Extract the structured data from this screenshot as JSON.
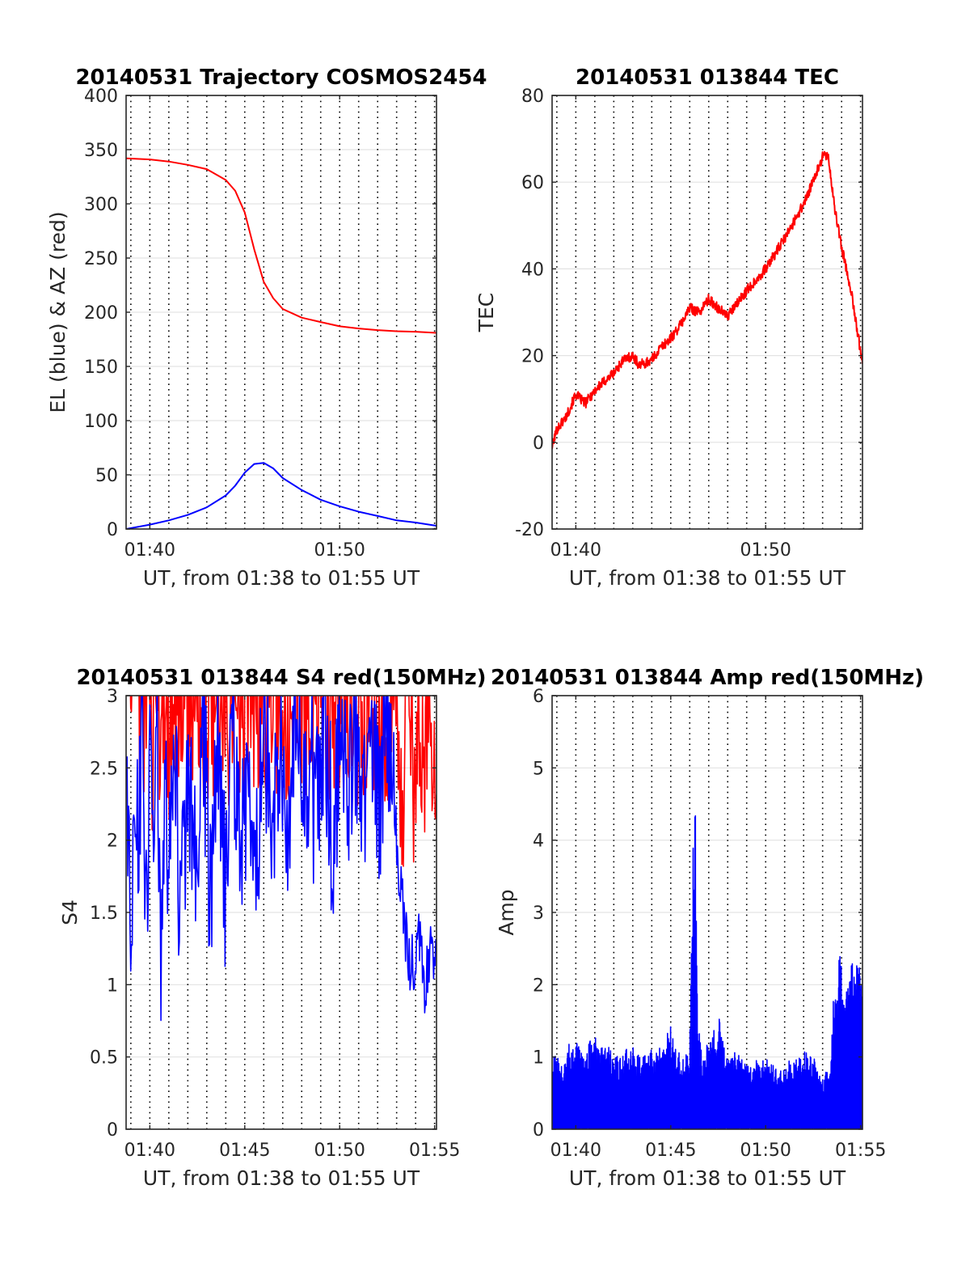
{
  "colors": {
    "red": "#ff0000",
    "blue": "#0000ff",
    "hgrid": "#e3e3e3",
    "vgrid": "#000000",
    "axis": "#262626"
  },
  "chart_data": [
    {
      "type": "line",
      "title": "20140531 Trajectory COSMOS2454",
      "xlabel": "UT, from 01:38 to 01:55 UT",
      "ylabel": "EL (blue) & AZ (red)",
      "x_unit": "minutes after 01:38 UT",
      "xlim": [
        0.75,
        17.1
      ],
      "ylim": [
        0,
        400
      ],
      "yticks": [
        0,
        50,
        100,
        150,
        200,
        250,
        300,
        350,
        400
      ],
      "yticklabels": [
        "0",
        "50",
        "100",
        "150",
        "200",
        "250",
        "300",
        "350",
        "400"
      ],
      "xticks": [
        2,
        12
      ],
      "xticklabels": [
        "01:40",
        "01:50"
      ],
      "vgrid": [
        1,
        2,
        3,
        4,
        5,
        6,
        7,
        8,
        9,
        10,
        11,
        12,
        13,
        14,
        15,
        16,
        17
      ],
      "series": [
        {
          "color": "#ff0000",
          "x": [
            0.75,
            2,
            3,
            4,
            5,
            6,
            6.5,
            7,
            7.5,
            8,
            8.5,
            9,
            10,
            11,
            12,
            13,
            14,
            15,
            16,
            17.1
          ],
          "y": [
            342,
            341,
            339,
            336,
            332,
            322,
            312,
            292,
            258,
            228,
            213,
            203,
            195,
            191,
            187,
            185,
            183.5,
            182.5,
            182,
            181
          ]
        },
        {
          "color": "#0000ff",
          "x": [
            0.75,
            2,
            3,
            4,
            5,
            6,
            6.5,
            7,
            7.5,
            8,
            8.5,
            9,
            10,
            11,
            12,
            13,
            14,
            15,
            16,
            17.1
          ],
          "y": [
            0,
            4,
            8,
            13,
            20,
            31,
            40,
            52,
            60,
            61,
            56,
            47,
            36,
            27,
            21,
            16,
            12,
            8,
            6,
            3
          ]
        }
      ]
    },
    {
      "type": "line",
      "title": "20140531 013844 TEC",
      "xlabel": "UT, from 01:38 to 01:55 UT",
      "ylabel": "TEC",
      "x_unit": "minutes after 01:38 UT",
      "xlim": [
        0.75,
        17.1
      ],
      "ylim": [
        -20,
        80
      ],
      "yticks": [
        -20,
        0,
        20,
        40,
        60,
        80
      ],
      "yticklabels": [
        "-20",
        "0",
        "20",
        "40",
        "60",
        "80"
      ],
      "xticks": [
        2,
        12
      ],
      "xticklabels": [
        "01:40",
        "01:50"
      ],
      "vgrid": [
        1,
        2,
        3,
        4,
        5,
        6,
        7,
        8,
        9,
        10,
        11,
        12,
        13,
        14,
        15,
        16,
        17
      ],
      "series": [
        {
          "color": "#ff0000",
          "x": [
            0.75,
            1.0,
            1.5,
            2.0,
            2.5,
            3.0,
            3.5,
            4.0,
            4.5,
            5.0,
            5.3,
            5.5,
            6.0,
            6.5,
            7.0,
            7.5,
            8.0,
            8.5,
            9.0,
            9.5,
            10.0,
            11.0,
            12.0,
            13.0,
            14.0,
            14.5,
            15.0,
            15.3,
            15.6,
            16.0,
            16.5,
            17.1
          ],
          "y": [
            -1,
            3,
            6,
            11,
            9,
            12,
            14,
            16,
            19,
            20,
            18,
            18,
            19,
            22,
            24,
            27,
            31,
            30,
            33,
            31,
            29,
            35,
            40,
            47,
            55,
            60,
            66,
            66,
            55,
            45,
            35,
            18
          ]
        }
      ]
    },
    {
      "type": "line",
      "title": "20140531 013844 S4 red(150MHz)",
      "xlabel": "UT, from 01:38 to 01:55 UT",
      "ylabel": "S4",
      "x_unit": "minutes after 01:38 UT",
      "xlim": [
        0.75,
        17.1
      ],
      "ylim": [
        0,
        3
      ],
      "yticks": [
        0,
        0.5,
        1,
        1.5,
        2,
        2.5,
        3
      ],
      "yticklabels": [
        "0",
        "0.5",
        "1",
        "1.5",
        "2",
        "2.5",
        "3"
      ],
      "xticks": [
        2,
        7,
        12,
        17
      ],
      "xticklabels": [
        "01:40",
        "01:45",
        "01:50",
        "01:55"
      ],
      "vgrid": [
        1,
        2,
        3,
        4,
        5,
        6,
        7,
        8,
        9,
        10,
        11,
        12,
        13,
        14,
        15,
        16,
        17
      ],
      "series": [
        {
          "color": "#ff0000",
          "x": [
            0.8,
            1.4,
            1.6,
            2.0,
            2.4,
            2.8,
            3.2,
            3.6,
            4.0,
            4.5,
            5.0,
            5.3,
            5.5,
            6.0,
            6.5,
            7.0,
            7.5,
            7.9,
            8.3,
            8.6,
            9.0,
            9.5,
            10.0,
            10.5,
            11.0,
            11.5,
            12.0,
            12.5,
            13.0,
            13.5,
            14.0,
            14.5,
            15.0,
            15.3,
            15.6,
            15.9,
            16.2,
            16.5,
            16.8,
            17.1
          ],
          "y": [
            3.0,
            2.9,
            3.0,
            2.8,
            2.6,
            3.0,
            2.7,
            3.0,
            2.9,
            3.0,
            2.9,
            2.8,
            3.0,
            2.9,
            3.0,
            3.0,
            2.9,
            3.0,
            2.8,
            3.0,
            3.0,
            2.9,
            3.0,
            2.8,
            3.0,
            2.9,
            3.0,
            3.0,
            2.9,
            3.0,
            2.8,
            2.9,
            3.0,
            2.2,
            3.0,
            2.3,
            3.0,
            2.5,
            3.0,
            2.3
          ]
        },
        {
          "color": "#0000ff",
          "x": [
            0.8,
            1.0,
            1.2,
            1.4,
            1.6,
            1.8,
            2.0,
            2.2,
            2.4,
            2.6,
            2.8,
            3.0,
            3.3,
            3.6,
            4.0,
            4.4,
            4.8,
            5.2,
            5.6,
            6.0,
            6.4,
            6.8,
            7.2,
            7.6,
            8.0,
            8.4,
            8.8,
            9.2,
            9.6,
            10.0,
            10.4,
            10.8,
            11.2,
            11.6,
            12.0,
            12.4,
            12.8,
            13.2,
            13.6,
            14.0,
            14.4,
            14.7,
            15.0,
            15.3,
            15.6,
            15.9,
            16.2,
            16.5,
            16.8,
            17.1
          ],
          "y": [
            2.2,
            1.5,
            2.6,
            1.9,
            2.8,
            1.3,
            2.4,
            1.7,
            2.9,
            1.2,
            2.5,
            1.6,
            2.8,
            1.4,
            2.6,
            1.8,
            2.9,
            1.5,
            2.7,
            1.6,
            2.8,
            2.0,
            2.6,
            1.9,
            2.9,
            2.2,
            2.7,
            2.0,
            2.9,
            2.3,
            2.6,
            2.2,
            2.9,
            2.1,
            2.6,
            2.3,
            2.8,
            2.0,
            2.9,
            2.2,
            2.8,
            2.6,
            2.0,
            1.6,
            1.2,
            1.1,
            1.3,
            1.0,
            1.2,
            1.1
          ]
        }
      ]
    },
    {
      "type": "line",
      "title": "20140531 013844 Amp red(150MHz)",
      "xlabel": "UT, from 01:38 to 01:55 UT",
      "ylabel": "Amp",
      "x_unit": "minutes after 01:38 UT",
      "xlim": [
        0.75,
        17.1
      ],
      "ylim": [
        0,
        6
      ],
      "yticks": [
        0,
        1,
        2,
        3,
        4,
        5,
        6
      ],
      "yticklabels": [
        "0",
        "1",
        "2",
        "3",
        "4",
        "5",
        "6"
      ],
      "xticks": [
        2,
        7,
        12,
        17
      ],
      "xticklabels": [
        "01:40",
        "01:45",
        "01:50",
        "01:55"
      ],
      "vgrid": [
        1,
        2,
        3,
        4,
        5,
        6,
        7,
        8,
        9,
        10,
        11,
        12,
        13,
        14,
        15,
        16,
        17
      ],
      "series": [
        {
          "color": "#0000ff",
          "x": [
            0.8,
            1.0,
            1.4,
            2.0,
            2.5,
            2.9,
            3.2,
            3.6,
            4.0,
            4.5,
            5.0,
            5.5,
            6.0,
            6.5,
            6.8,
            7.0,
            7.3,
            7.7,
            8.0,
            8.2,
            8.3,
            8.4,
            8.6,
            9.0,
            9.5,
            10.0,
            10.5,
            11.0,
            12.0,
            13.0,
            14.0,
            14.5,
            15.0,
            15.4,
            15.6,
            15.9,
            16.2,
            16.5,
            16.8,
            17.1
          ],
          "y": [
            1.2,
            1.0,
            1.1,
            1.3,
            1.0,
            1.4,
            1.1,
            1.2,
            1.0,
            1.1,
            1.2,
            1.0,
            1.1,
            1.2,
            1.3,
            1.6,
            1.1,
            1.0,
            1.2,
            4.2,
            4.6,
            2.0,
            1.1,
            1.2,
            1.6,
            1.0,
            1.1,
            0.9,
            1.0,
            0.9,
            1.1,
            1.0,
            0.8,
            0.8,
            2.0,
            2.5,
            1.8,
            2.3,
            2.5,
            2.0
          ]
        }
      ]
    }
  ]
}
